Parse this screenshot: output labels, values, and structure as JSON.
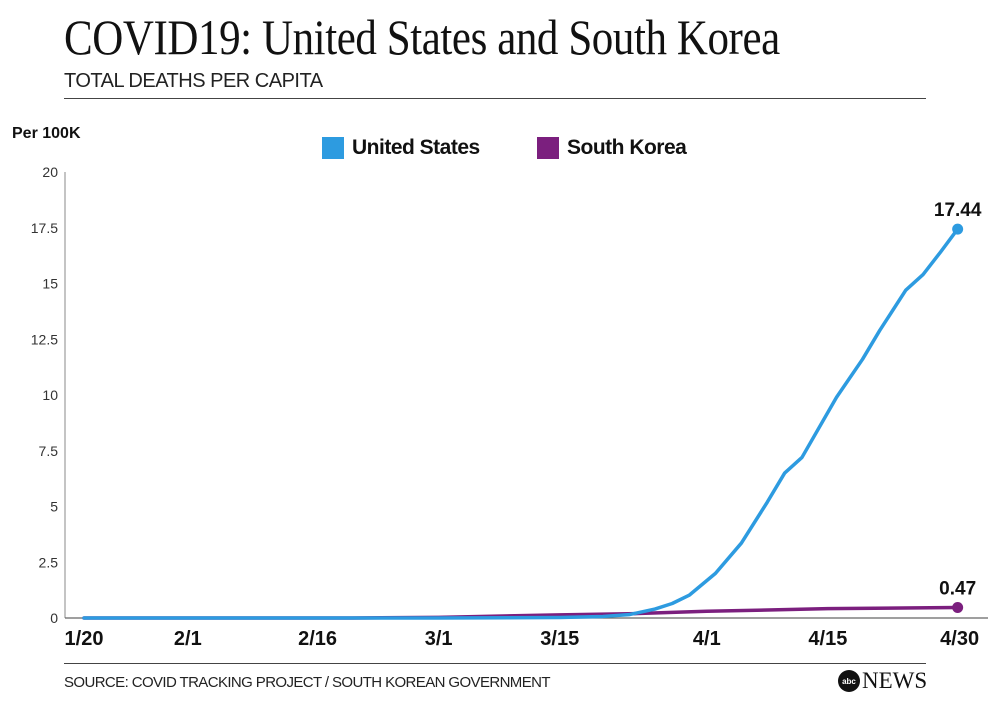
{
  "header": {
    "title": "COVID19: United States and South Korea",
    "subtitle": "TOTAL DEATHS PER CAPITA"
  },
  "footer": {
    "source": "SOURCE: COVID TRACKING PROJECT / SOUTH KOREAN GOVERNMENT",
    "logo_abc": "abc",
    "logo_news": "NEWS"
  },
  "chart_data": {
    "type": "line",
    "title": "COVID19: United States and South Korea",
    "subtitle": "TOTAL DEATHS PER CAPITA",
    "ylabel": "Per 100K",
    "xlabel": "",
    "ylim": [
      0,
      20
    ],
    "yticks": [
      "0",
      "2.5",
      "5",
      "7.5",
      "10",
      "12.5",
      "15",
      "17.5",
      "20"
    ],
    "ytick_values": [
      0,
      2.5,
      5,
      7.5,
      10,
      12.5,
      15,
      17.5,
      20
    ],
    "xticks": [
      "1/20",
      "2/1",
      "2/16",
      "3/1",
      "3/15",
      "4/1",
      "4/15",
      "4/30"
    ],
    "grid": false,
    "legend_position": "top-center",
    "series": [
      {
        "name": "United States",
        "color": "#2d9be0",
        "end_label": "17.44",
        "x": [
          "1/20",
          "3/1",
          "3/15",
          "3/20",
          "3/23",
          "3/26",
          "3/28",
          "3/30",
          "4/2",
          "4/5",
          "4/8",
          "4/10",
          "4/12",
          "4/16",
          "4/19",
          "4/21",
          "4/24",
          "4/26",
          "4/28",
          "4/30"
        ],
        "y": [
          0,
          0,
          0.02,
          0.07,
          0.15,
          0.4,
          0.65,
          1.03,
          2.0,
          3.36,
          5.2,
          6.5,
          7.2,
          9.9,
          11.6,
          12.9,
          14.7,
          15.4,
          16.4,
          17.44
        ]
      },
      {
        "name": "South Korea",
        "color": "#7b1f7e",
        "end_label": "0.47",
        "x": [
          "1/20",
          "2/20",
          "3/1",
          "3/15",
          "3/24",
          "4/1",
          "4/15",
          "4/30"
        ],
        "y": [
          0,
          0,
          0.03,
          0.14,
          0.2,
          0.3,
          0.42,
          0.47
        ]
      }
    ]
  }
}
